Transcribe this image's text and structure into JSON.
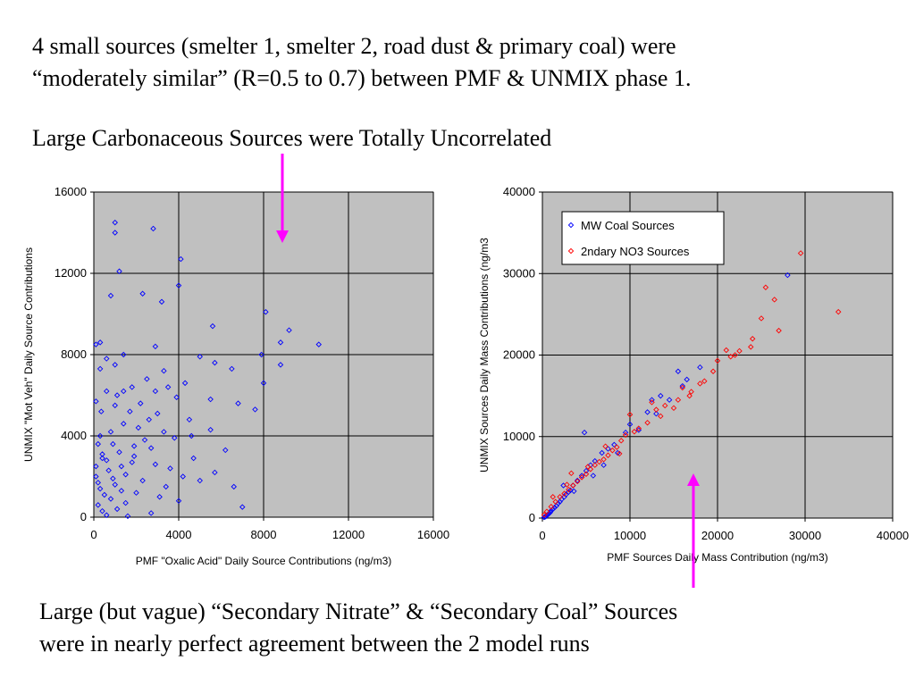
{
  "slide": {
    "intro_line1": "4 small sources (smelter 1, smelter 2, road dust & primary coal) were",
    "intro_line2": "“moderately similar” (R=0.5 to 0.7) between PMF & UNMIX phase 1.",
    "heading": "Large Carbonaceous Sources were Totally Uncorrelated",
    "footer_line1": "Large (but vague) “Secondary Nitrate” & “Secondary Coal” Sources",
    "footer_line2": "were in nearly perfect agreement between the 2 model runs"
  },
  "colors": {
    "plot_bg": "#c0c0c0",
    "grid": "#000000",
    "blue_series": "#0000ff",
    "red_series": "#ff0000",
    "arrow": "#ff00ff"
  },
  "chart_data": [
    {
      "type": "scatter",
      "xlabel": "PMF \"Oxalic Acid\" Daily Source Contributions (ng/m3)",
      "ylabel": "UNMIX \"Mot Veh\" Daily Source Contributions",
      "xlim": [
        0,
        16000
      ],
      "ylim": [
        0,
        16000
      ],
      "x_ticks": [
        "0",
        "4000",
        "8000",
        "12000",
        "16000"
      ],
      "y_ticks": [
        "0",
        "4000",
        "8000",
        "12000",
        "16000"
      ],
      "grid": true,
      "series": [
        {
          "marker": "diamond-open",
          "color": "#0000ff",
          "points": [
            [
              1000,
              14500
            ],
            [
              2800,
              14200
            ],
            [
              1000,
              14000
            ],
            [
              4100,
              12700
            ],
            [
              1200,
              12100
            ],
            [
              4000,
              11400
            ],
            [
              2300,
              11000
            ],
            [
              800,
              10900
            ],
            [
              3200,
              10600
            ],
            [
              8100,
              10100
            ],
            [
              5600,
              9400
            ],
            [
              9200,
              9200
            ],
            [
              8800,
              8600
            ],
            [
              2900,
              8400
            ],
            [
              10600,
              8500
            ],
            [
              300,
              8600
            ],
            [
              100,
              8500
            ],
            [
              1400,
              8000
            ],
            [
              7900,
              8000
            ],
            [
              5000,
              7900
            ],
            [
              6500,
              7300
            ],
            [
              8800,
              7500
            ],
            [
              5700,
              7600
            ],
            [
              3300,
              7200
            ],
            [
              300,
              7300
            ],
            [
              1000,
              7500
            ],
            [
              3500,
              6400
            ],
            [
              2500,
              6800
            ],
            [
              1800,
              6400
            ],
            [
              4300,
              6600
            ],
            [
              8000,
              6600
            ],
            [
              600,
              6200
            ],
            [
              1400,
              6200
            ],
            [
              2900,
              6200
            ],
            [
              5500,
              5800
            ],
            [
              6800,
              5600
            ],
            [
              7600,
              5300
            ],
            [
              2200,
              5600
            ],
            [
              1000,
              5500
            ],
            [
              3000,
              5100
            ],
            [
              100,
              5700
            ],
            [
              2600,
              4800
            ],
            [
              4500,
              4800
            ],
            [
              1400,
              4600
            ],
            [
              800,
              4200
            ],
            [
              3300,
              4200
            ],
            [
              5500,
              4300
            ],
            [
              4600,
              4000
            ],
            [
              300,
              4000
            ],
            [
              3800,
              3900
            ],
            [
              200,
              3600
            ],
            [
              1900,
              3500
            ],
            [
              2700,
              3400
            ],
            [
              6200,
              3300
            ],
            [
              1200,
              3200
            ],
            [
              400,
              3100
            ],
            [
              4700,
              2900
            ],
            [
              600,
              2800
            ],
            [
              1800,
              2700
            ],
            [
              2900,
              2600
            ],
            [
              100,
              2500
            ],
            [
              3600,
              2400
            ],
            [
              700,
              2300
            ],
            [
              5700,
              2200
            ],
            [
              1500,
              2100
            ],
            [
              4200,
              2000
            ],
            [
              2300,
              1800
            ],
            [
              200,
              1700
            ],
            [
              1000,
              1600
            ],
            [
              3400,
              1500
            ],
            [
              6600,
              1500
            ],
            [
              300,
              1400
            ],
            [
              1300,
              1300
            ],
            [
              2000,
              1200
            ],
            [
              500,
              1100
            ],
            [
              3100,
              1000
            ],
            [
              800,
              900
            ],
            [
              4000,
              800
            ],
            [
              1500,
              700
            ],
            [
              200,
              600
            ],
            [
              7000,
              500
            ],
            [
              1100,
              400
            ],
            [
              400,
              300
            ],
            [
              2700,
              200
            ],
            [
              600,
              100
            ],
            [
              1600,
              50
            ],
            [
              100,
              2000
            ],
            [
              400,
              2900
            ],
            [
              900,
              3600
            ],
            [
              1300,
              2500
            ],
            [
              1700,
              5200
            ],
            [
              2400,
              3800
            ],
            [
              3900,
              5900
            ],
            [
              1100,
              6000
            ],
            [
              5000,
              1800
            ],
            [
              2100,
              4400
            ],
            [
              350,
              5200
            ],
            [
              600,
              7800
            ],
            [
              1900,
              3000
            ],
            [
              900,
              1900
            ]
          ]
        }
      ]
    },
    {
      "type": "scatter",
      "xlabel": "PMF Sources Daily Mass Contribution (ng/m3)",
      "ylabel": "UNMIX Sources Daily Mass Contributions (ng/m3",
      "xlim": [
        0,
        40000
      ],
      "ylim": [
        0,
        40000
      ],
      "x_ticks": [
        "0",
        "10000",
        "20000",
        "30000",
        "40000"
      ],
      "y_ticks": [
        "0",
        "10000",
        "20000",
        "30000",
        "40000"
      ],
      "grid": true,
      "legend": "top-left",
      "series": [
        {
          "name": "MW Coal Sources",
          "marker": "diamond",
          "color": "#0000ff",
          "points": [
            [
              28000,
              29800
            ],
            [
              18000,
              18500
            ],
            [
              15500,
              18000
            ],
            [
              16500,
              17000
            ],
            [
              12500,
              14500
            ],
            [
              12000,
              13000
            ],
            [
              14500,
              14500
            ],
            [
              10000,
              11500
            ],
            [
              9500,
              10500
            ],
            [
              8200,
              9000
            ],
            [
              7500,
              8500
            ],
            [
              6800,
              8000
            ],
            [
              6000,
              7000
            ],
            [
              5500,
              6500
            ],
            [
              5000,
              5800
            ],
            [
              4800,
              10500
            ],
            [
              4500,
              5200
            ],
            [
              4000,
              4600
            ],
            [
              3500,
              4000
            ],
            [
              3200,
              3400
            ],
            [
              3000,
              3200
            ],
            [
              2700,
              2900
            ],
            [
              2500,
              2600
            ],
            [
              2200,
              2300
            ],
            [
              2000,
              2000
            ],
            [
              1800,
              1800
            ],
            [
              1600,
              1500
            ],
            [
              1400,
              1300
            ],
            [
              1200,
              1100
            ],
            [
              1000,
              900
            ],
            [
              900,
              700
            ],
            [
              800,
              600
            ],
            [
              700,
              500
            ],
            [
              600,
              400
            ],
            [
              500,
              300
            ],
            [
              400,
              200
            ],
            [
              300,
              150
            ],
            [
              200,
              100
            ],
            [
              2400,
              4000
            ],
            [
              3600,
              3300
            ],
            [
              5800,
              5200
            ],
            [
              7000,
              6500
            ],
            [
              8600,
              8000
            ],
            [
              11000,
              10800
            ],
            [
              13000,
              12800
            ],
            [
              13500,
              15000
            ],
            [
              16000,
              16200
            ]
          ]
        },
        {
          "name": "2ndary NO3 Sources",
          "marker": "diamond",
          "color": "#ff0000",
          "points": [
            [
              29500,
              32500
            ],
            [
              33800,
              25300
            ],
            [
              25500,
              28300
            ],
            [
              26500,
              26800
            ],
            [
              27000,
              23000
            ],
            [
              25000,
              24500
            ],
            [
              24000,
              22000
            ],
            [
              23800,
              21000
            ],
            [
              22500,
              20500
            ],
            [
              22000,
              20000
            ],
            [
              21000,
              20600
            ],
            [
              20000,
              19300
            ],
            [
              19500,
              18000
            ],
            [
              18500,
              16800
            ],
            [
              17000,
              15500
            ],
            [
              16000,
              16000
            ],
            [
              15500,
              14500
            ],
            [
              15000,
              13500
            ],
            [
              14000,
              13800
            ],
            [
              13500,
              12500
            ],
            [
              12500,
              14200
            ],
            [
              12000,
              11700
            ],
            [
              11000,
              11000
            ],
            [
              10000,
              12700
            ],
            [
              9500,
              10200
            ],
            [
              9000,
              9500
            ],
            [
              8500,
              8700
            ],
            [
              8000,
              8300
            ],
            [
              7500,
              7700
            ],
            [
              7000,
              7200
            ],
            [
              6500,
              6900
            ],
            [
              6000,
              6500
            ],
            [
              5500,
              6000
            ],
            [
              5000,
              5400
            ],
            [
              4500,
              5000
            ],
            [
              4000,
              4500
            ],
            [
              3500,
              4000
            ],
            [
              3000,
              3500
            ],
            [
              2500,
              3000
            ],
            [
              2000,
              2600
            ],
            [
              1500,
              2000
            ],
            [
              1000,
              1400
            ],
            [
              500,
              800
            ],
            [
              200,
              400
            ],
            [
              3300,
              5500
            ],
            [
              5200,
              6300
            ],
            [
              7200,
              8800
            ],
            [
              8800,
              7900
            ],
            [
              10500,
              10600
            ],
            [
              13000,
              13300
            ],
            [
              16800,
              15000
            ],
            [
              18000,
              16500
            ],
            [
              21500,
              19800
            ],
            [
              1200,
              2600
            ],
            [
              2800,
              4100
            ]
          ]
        }
      ]
    }
  ]
}
